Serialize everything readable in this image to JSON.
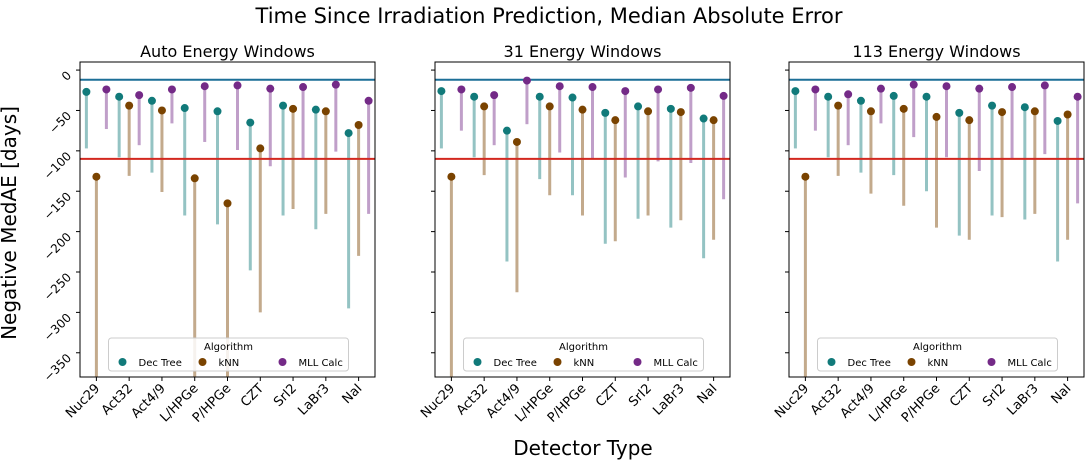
{
  "figure": {
    "suptitle": "Time Since Irradiation Prediction, Median Absolute Error",
    "ylabel": "Negative MedAE [days]",
    "xlabel": "Detector Type"
  },
  "colors": {
    "Dec Tree": "#117a7a",
    "kNN": "#7a4300",
    "MLL Calc": "#742a87",
    "hline_upper": "#1c6f97",
    "hline_lower": "#d3281f"
  },
  "chart_data": [
    {
      "type": "scatter",
      "title": "Auto Energy Windows",
      "categories": [
        "Nuc29",
        "Act32",
        "Act4/9",
        "L/HPGe",
        "P/HPGe",
        "CZT",
        "SrI2",
        "LaBr3",
        "NaI"
      ],
      "ylim": [
        -380,
        10
      ],
      "yticks": [
        0,
        -50,
        -100,
        -150,
        -200,
        -250,
        -300,
        -350
      ],
      "hlines": [
        -12,
        -110
      ],
      "legend": {
        "title": "Algorithm",
        "entries": [
          "Dec Tree",
          "kNN",
          "MLL Calc"
        ],
        "placement": "lower center"
      },
      "series": [
        {
          "name": "Dec Tree",
          "values": [
            -27,
            -33,
            -38,
            -47,
            -51,
            -65,
            -44,
            -49,
            -78
          ],
          "lower": [
            -97,
            -108,
            -127,
            -180,
            -191,
            -248,
            -180,
            -197,
            -295
          ]
        },
        {
          "name": "kNN",
          "values": [
            -132,
            -44,
            -50,
            -134,
            -165,
            -97,
            -48,
            -51,
            -68
          ],
          "lower": [
            -380,
            -131,
            -151,
            -380,
            -380,
            -300,
            -172,
            -178,
            -230
          ]
        },
        {
          "name": "MLL Calc",
          "values": [
            -24,
            -31,
            -24,
            -20,
            -19,
            -23,
            -21,
            -18,
            -38
          ],
          "lower": [
            -73,
            -93,
            -66,
            -89,
            -99,
            -119,
            -109,
            -101,
            -178
          ]
        }
      ]
    },
    {
      "type": "scatter",
      "title": "31 Energy Windows",
      "categories": [
        "Nuc29",
        "Act32",
        "Act4/9",
        "L/HPGe",
        "P/HPGe",
        "CZT",
        "SrI2",
        "LaBr3",
        "NaI"
      ],
      "ylim": [
        -380,
        10
      ],
      "yticks": [
        0,
        -50,
        -100,
        -150,
        -200,
        -250,
        -300,
        -350
      ],
      "hlines": [
        -12,
        -110
      ],
      "legend": {
        "title": "Algorithm",
        "entries": [
          "Dec Tree",
          "kNN",
          "MLL Calc"
        ],
        "placement": "lower center"
      },
      "series": [
        {
          "name": "Dec Tree",
          "values": [
            -26,
            -33,
            -75,
            -33,
            -34,
            -53,
            -45,
            -48,
            -60
          ],
          "lower": [
            -97,
            -108,
            -237,
            -135,
            -155,
            -215,
            -184,
            -195,
            -233
          ]
        },
        {
          "name": "kNN",
          "values": [
            -132,
            -45,
            -89,
            -45,
            -49,
            -62,
            -51,
            -52,
            -62
          ],
          "lower": [
            -380,
            -130,
            -275,
            -155,
            -180,
            -212,
            -180,
            -186,
            -210
          ]
        },
        {
          "name": "MLL Calc",
          "values": [
            -24,
            -31,
            -13,
            -20,
            -21,
            -26,
            -24,
            -22,
            -32
          ],
          "lower": [
            -75,
            -93,
            -67,
            -102,
            -110,
            -133,
            -113,
            -115,
            -160
          ]
        }
      ]
    },
    {
      "type": "scatter",
      "title": "113 Energy Windows",
      "categories": [
        "Nuc29",
        "Act32",
        "Act4/9",
        "L/HPGe",
        "P/HPGe",
        "CZT",
        "SrI2",
        "LaBr3",
        "NaI"
      ],
      "ylim": [
        -380,
        10
      ],
      "yticks": [
        0,
        -50,
        -100,
        -150,
        -200,
        -250,
        -300,
        -350
      ],
      "hlines": [
        -12,
        -110
      ],
      "legend": {
        "title": "Algorithm",
        "entries": [
          "Dec Tree",
          "kNN",
          "MLL Calc"
        ],
        "placement": "lower center"
      },
      "series": [
        {
          "name": "Dec Tree",
          "values": [
            -26,
            -33,
            -38,
            -32,
            -33,
            -53,
            -44,
            -46,
            -63
          ],
          "lower": [
            -97,
            -108,
            -127,
            -130,
            -150,
            -205,
            -180,
            -185,
            -237
          ]
        },
        {
          "name": "kNN",
          "values": [
            -132,
            -44,
            -51,
            -48,
            -58,
            -62,
            -52,
            -51,
            -55
          ],
          "lower": [
            -380,
            -131,
            -153,
            -168,
            -195,
            -210,
            -182,
            -178,
            -210
          ]
        },
        {
          "name": "MLL Calc",
          "values": [
            -24,
            -30,
            -23,
            -18,
            -20,
            -23,
            -21,
            -19,
            -33
          ],
          "lower": [
            -75,
            -93,
            -66,
            -83,
            -108,
            -125,
            -110,
            -104,
            -165
          ]
        }
      ]
    }
  ]
}
